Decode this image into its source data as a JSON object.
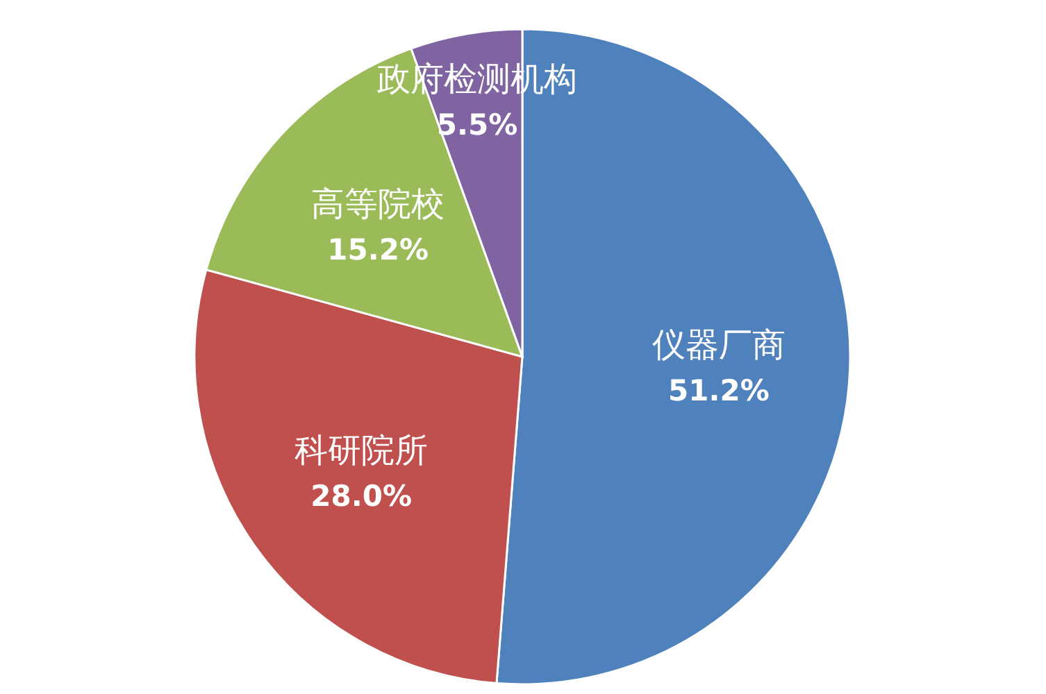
{
  "chart_data": {
    "type": "pie",
    "categories": [
      "仪器厂商",
      "科研院所",
      "高等院校",
      "政府检测机构"
    ],
    "values": [
      51.2,
      28.0,
      15.2,
      5.5
    ],
    "value_labels": [
      "51.2%",
      "28.0%",
      "15.2%",
      "5.5%"
    ],
    "colors": [
      "#4f81bd",
      "#c0504d",
      "#9bbb59",
      "#8064a2"
    ]
  }
}
